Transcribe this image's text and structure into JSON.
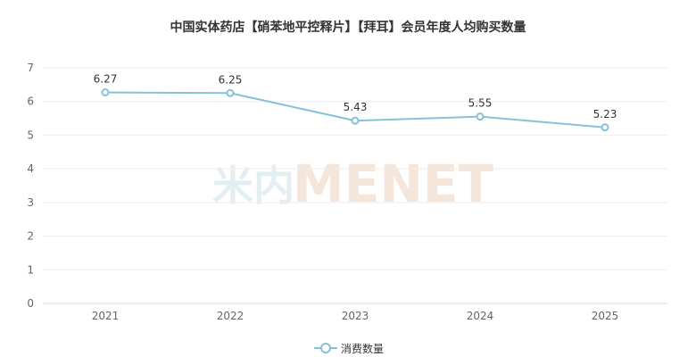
{
  "chart_data": {
    "type": "line",
    "title": "中国实体药店【硝苯地平控释片】【拜耳】会员年度人均购买数量",
    "categories": [
      "2021",
      "2022",
      "2023",
      "2024",
      "2025"
    ],
    "series": [
      {
        "name": "消费数量",
        "values": [
          6.27,
          6.25,
          5.43,
          5.55,
          5.23
        ],
        "color": "#85c1d9"
      }
    ],
    "ylim": [
      0,
      7
    ],
    "yticks": [
      0,
      1,
      2,
      3,
      4,
      5,
      6,
      7
    ],
    "grid": true,
    "legend": "bottom-center"
  },
  "watermark": {
    "cn": "米内",
    "en": "MENET"
  }
}
